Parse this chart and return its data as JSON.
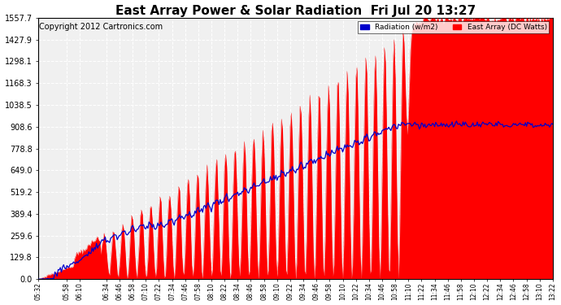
{
  "title": "East Array Power & Solar Radiation  Fri Jul 20 13:27",
  "copyright": "Copyright 2012 Cartronics.com",
  "legend_radiation": "Radiation (w/m2)",
  "legend_east": "East Array (DC Watts)",
  "ymin": 0.0,
  "ymax": 1557.7,
  "yticks": [
    0.0,
    129.8,
    259.6,
    389.4,
    519.2,
    649.0,
    778.8,
    908.6,
    1038.5,
    1168.3,
    1298.1,
    1427.9,
    1557.7
  ],
  "bg_color": "#ffffff",
  "plot_bg_color": "#f0f0f0",
  "grid_color": "#ffffff",
  "radiation_color": "#0000cc",
  "east_array_color": "#ff0000",
  "title_fontsize": 11,
  "tick_fontsize": 7,
  "copyright_fontsize": 7
}
